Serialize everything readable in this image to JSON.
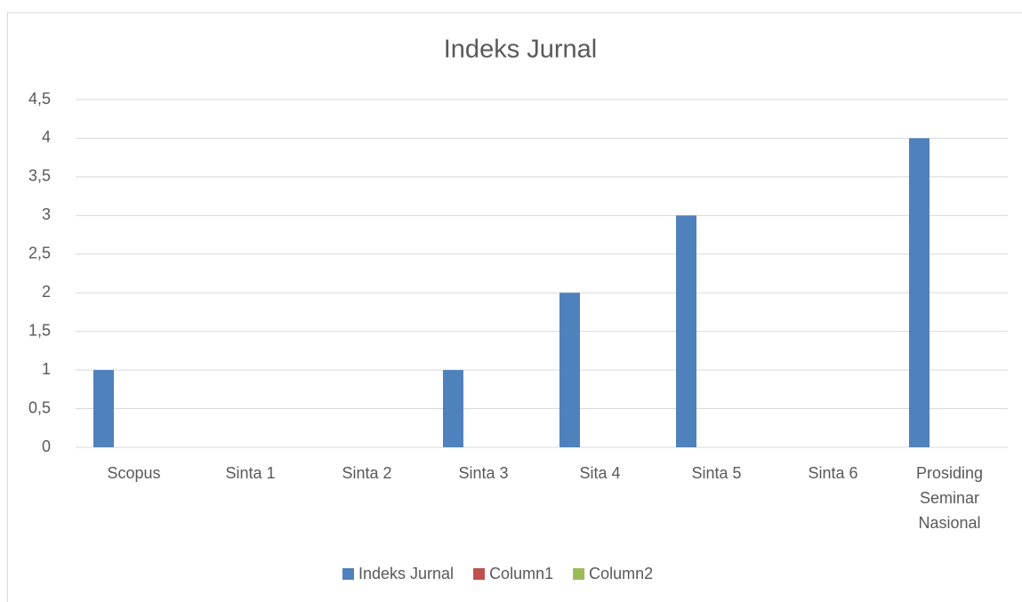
{
  "chart_data": {
    "type": "bar",
    "title": "Indeks Jurnal",
    "categories": [
      "Scopus",
      "Sinta 1",
      "Sinta 2",
      "Sinta 3",
      "Sita 4",
      "Sinta 5",
      "Sinta 6",
      "Prosiding Seminar Nasional"
    ],
    "series": [
      {
        "name": "Indeks Jurnal",
        "color": "#4f81bd",
        "values": [
          1,
          0,
          0,
          1,
          2,
          3,
          0,
          4
        ]
      },
      {
        "name": "Column1",
        "color": "#c0504d",
        "values": [
          null,
          null,
          null,
          null,
          null,
          null,
          null,
          null
        ]
      },
      {
        "name": "Column2",
        "color": "#9bbb59",
        "values": [
          null,
          null,
          null,
          null,
          null,
          null,
          null,
          null
        ]
      }
    ],
    "ylim": [
      0,
      4.5
    ],
    "yticks": [
      0,
      {
        "value": 0.5,
        "label": "0,5"
      },
      1,
      {
        "value": 1.5,
        "label": "1,5"
      },
      2,
      {
        "value": 2.5,
        "label": "2,5"
      },
      3,
      {
        "value": 3.5,
        "label": "3,5"
      },
      4,
      {
        "value": 4.5,
        "label": "4,5"
      }
    ],
    "grid": true,
    "legend": "bottom"
  }
}
